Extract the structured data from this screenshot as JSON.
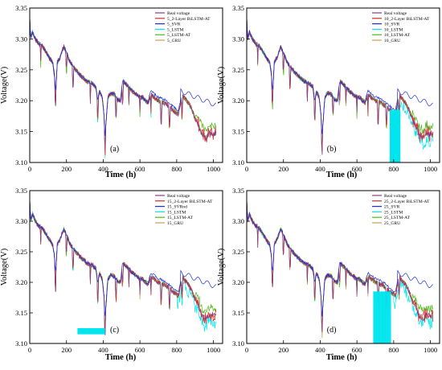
{
  "figure": {
    "panels": 4
  },
  "chart_data": [
    {
      "type": "line",
      "panel_label": "(a)",
      "xlabel": "Time (h)",
      "ylabel": "Voltage(V)",
      "xlim": [
        0,
        1050
      ],
      "ylim": [
        3.1,
        3.35
      ],
      "xticks": [
        "0",
        "200",
        "400",
        "600",
        "800",
        "1000"
      ],
      "yticks": [
        "3.10",
        "3.15",
        "3.20",
        "3.25",
        "3.30",
        "3.35"
      ],
      "legend_position": "top-right",
      "series": [
        {
          "name": "Real voltage",
          "color": "#8b3a8b"
        },
        {
          "name": "5_2-Layer BiLSTM-AT",
          "color": "#d62728"
        },
        {
          "name": "5_SVR",
          "color": "#1f2fd6"
        },
        {
          "name": "5_LSTM",
          "color": "#00e5ee"
        },
        {
          "name": "5_LSTM-AT",
          "color": "#4cbb17"
        },
        {
          "name": "5_GRU",
          "color": "#c8a050"
        }
      ]
    },
    {
      "type": "line",
      "panel_label": "(b)",
      "xlabel": "Time (h)",
      "ylabel": "Voltage(V)",
      "xlim": [
        0,
        1050
      ],
      "ylim": [
        3.1,
        3.35
      ],
      "xticks": [
        "0",
        "200",
        "400",
        "600",
        "800",
        "1000"
      ],
      "yticks": [
        "3.10",
        "3.15",
        "3.20",
        "3.25",
        "3.30",
        "3.35"
      ],
      "legend_position": "top-right",
      "series": [
        {
          "name": "Real voltage",
          "color": "#8b3a8b"
        },
        {
          "name": "10_2-Layer BiLSTM-AT",
          "color": "#d62728"
        },
        {
          "name": "10_SVR",
          "color": "#1f2fd6"
        },
        {
          "name": "10_LSTM",
          "color": "#00e5ee"
        },
        {
          "name": "10_LSTM-AT",
          "color": "#4cbb17"
        },
        {
          "name": "10_GRU",
          "color": "#c8a050"
        }
      ]
    },
    {
      "type": "line",
      "panel_label": "(c)",
      "xlabel": "Time (h)",
      "ylabel": "Voltage(V)",
      "xlim": [
        0,
        1050
      ],
      "ylim": [
        3.1,
        3.35
      ],
      "xticks": [
        "0",
        "200",
        "400",
        "600",
        "800",
        "1000"
      ],
      "yticks": [
        "3.10",
        "3.15",
        "3.20",
        "3.25",
        "3.30",
        "3.35"
      ],
      "legend_position": "top-right",
      "series": [
        {
          "name": "Real voltage",
          "color": "#8b3a8b"
        },
        {
          "name": "15_2-Layer BiLSTM-AT",
          "color": "#d62728"
        },
        {
          "name": "15_SVRnd",
          "color": "#1f2fd6"
        },
        {
          "name": "15_LSTM",
          "color": "#00e5ee"
        },
        {
          "name": "15_LSTM-AT",
          "color": "#4cbb17"
        },
        {
          "name": "15_GRU",
          "color": "#c8a050"
        }
      ]
    },
    {
      "type": "line",
      "panel_label": "(d)",
      "xlabel": "Time (h)",
      "ylabel": "Voltage(V)",
      "xlim": [
        0,
        1050
      ],
      "ylim": [
        3.1,
        3.35
      ],
      "xticks": [
        "0",
        "200",
        "400",
        "600",
        "800",
        "1000"
      ],
      "yticks": [
        "3.10",
        "3.15",
        "3.20",
        "3.25",
        "3.30",
        "3.35"
      ],
      "legend_position": "top-right",
      "series": [
        {
          "name": "Real voltage",
          "color": "#8b3a8b"
        },
        {
          "name": "25_2-Layer BiLSTM-AT",
          "color": "#d62728"
        },
        {
          "name": "25_SVR",
          "color": "#1f2fd6"
        },
        {
          "name": "25_LSTM",
          "color": "#00e5ee"
        },
        {
          "name": "25_LSTM-AT",
          "color": "#4cbb17"
        },
        {
          "name": "25_GRU",
          "color": "#c8a050"
        }
      ]
    }
  ]
}
